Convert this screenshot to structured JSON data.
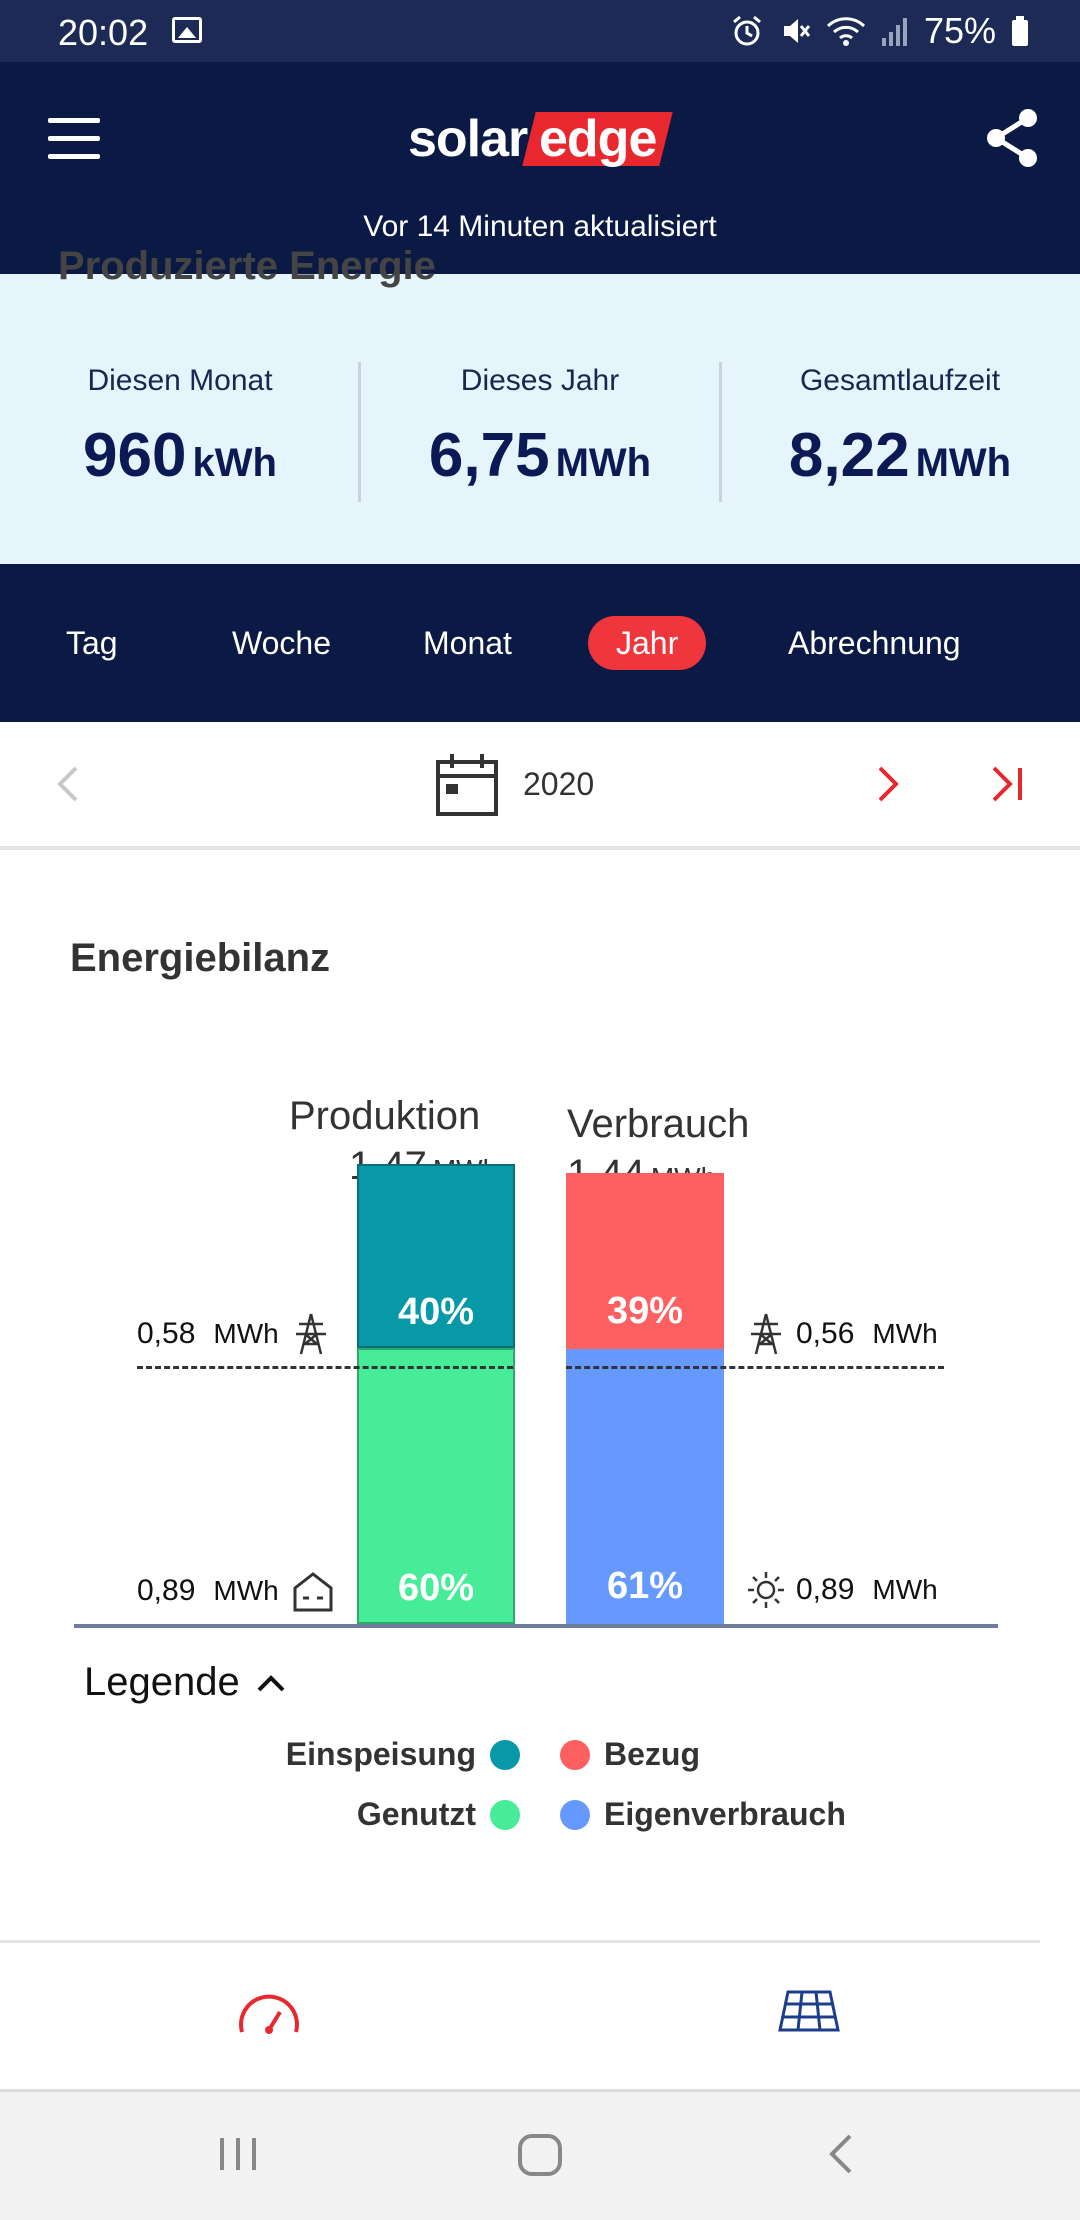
{
  "status_bar": {
    "time": "20:02",
    "battery": "75%"
  },
  "header": {
    "logo_solar": "solar",
    "logo_edge": "edge",
    "updated": "Vor 14 Minuten aktualisiert"
  },
  "summary": {
    "title": "Produzierte Energie",
    "items": [
      {
        "label": "Diesen Monat",
        "value": "960",
        "unit": "kWh"
      },
      {
        "label": "Dieses Jahr",
        "value": "6,75",
        "unit": "MWh"
      },
      {
        "label": "Gesamtlaufzeit",
        "value": "8,22",
        "unit": "MWh"
      }
    ]
  },
  "tabs": [
    "Tag",
    "Woche",
    "Monat",
    "Jahr",
    "Abrechnung"
  ],
  "active_tab": "Jahr",
  "date_nav": {
    "year": "2020"
  },
  "section_title": "Energiebilanz",
  "chart_data": {
    "type": "bar",
    "categories": [
      "Produktion",
      "Verbrauch"
    ],
    "totals": [
      {
        "value": "1,47",
        "unit": "MWh"
      },
      {
        "value": "1,44",
        "unit": "MWh"
      }
    ],
    "series": [
      {
        "name": "Einspeisung",
        "bar": "Produktion",
        "percent": 40,
        "label": "40%",
        "amount": "0,58",
        "unit": "MWh",
        "color": "#0899a8"
      },
      {
        "name": "Genutzt",
        "bar": "Produktion",
        "percent": 60,
        "label": "60%",
        "amount": "0,89",
        "unit": "MWh",
        "color": "#46ec97"
      },
      {
        "name": "Bezug",
        "bar": "Verbrauch",
        "percent": 39,
        "label": "39%",
        "amount": "0,56",
        "unit": "MWh",
        "color": "#fe5f61"
      },
      {
        "name": "Eigenverbrauch",
        "bar": "Verbrauch",
        "percent": 61,
        "label": "61%",
        "amount": "0,89",
        "unit": "MWh",
        "color": "#6699fe"
      }
    ]
  },
  "legend": {
    "title": "Legende",
    "items": [
      {
        "label": "Einspeisung",
        "color": "#0899a8"
      },
      {
        "label": "Bezug",
        "color": "#fe5f61"
      },
      {
        "label": "Genutzt",
        "color": "#46ec97"
      },
      {
        "label": "Eigenverbrauch",
        "color": "#6699fe"
      }
    ]
  },
  "bottom_nav": {
    "icons": [
      "dashboard-gauge-icon",
      "solar-panel-layout-icon"
    ]
  },
  "colors": {
    "navy": "#0b1a45",
    "accent_red": "#f0363d"
  }
}
